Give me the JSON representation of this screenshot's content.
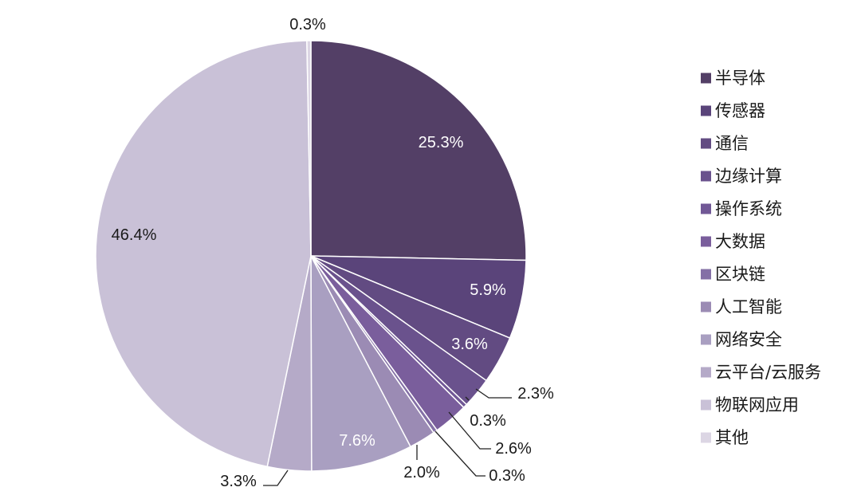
{
  "chart_data": {
    "type": "pie",
    "categories": [
      "半导体",
      "传感器",
      "通信",
      "边缘计算",
      "操作系统",
      "大数据",
      "区块链",
      "人工智能",
      "网络安全",
      "云平台/云服务",
      "物联网应用",
      "其他"
    ],
    "values": [
      25.3,
      5.9,
      3.6,
      2.3,
      0.3,
      2.6,
      0.3,
      2.0,
      7.6,
      3.3,
      46.4,
      0.3
    ],
    "labels": [
      "25.3%",
      "5.9%",
      "3.6%",
      "2.3%",
      "0.3%",
      "2.6%",
      "0.3%",
      "2.0%",
      "7.6%",
      "3.3%",
      "46.4%",
      "0.3%"
    ],
    "colors": [
      "#533f66",
      "#5a447a",
      "#624b82",
      "#6a528d",
      "#715896",
      "#7a5e9c",
      "#8470a6",
      "#9b8bb4",
      "#a99fc1",
      "#b5aac8",
      "#c9c1d7",
      "#dcd6e4"
    ],
    "start_angle_deg": 0,
    "direction": "clockwise",
    "legend_position": "right"
  }
}
